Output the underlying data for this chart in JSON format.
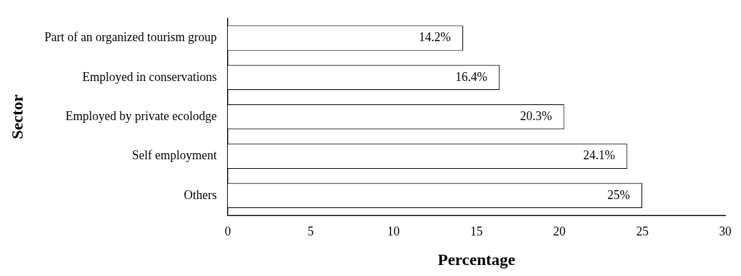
{
  "chart_data": {
    "type": "bar",
    "orientation": "horizontal",
    "xlabel": "Percentage",
    "ylabel": "Sector",
    "categories": [
      "Part of an organized tourism group",
      "Employed in conservations",
      "Employed by private ecolodge",
      "Self employment",
      "Others"
    ],
    "values": [
      14.2,
      16.4,
      20.3,
      24.1,
      25
    ],
    "value_labels": [
      "14.2%",
      "16.4%",
      "20.3%",
      "24.1%",
      "25%"
    ],
    "color": "#ffffff",
    "xlim": [
      0,
      30
    ],
    "xticks": [
      0,
      5,
      10,
      15,
      20,
      25,
      30
    ],
    "grid": false,
    "legend": false
  }
}
